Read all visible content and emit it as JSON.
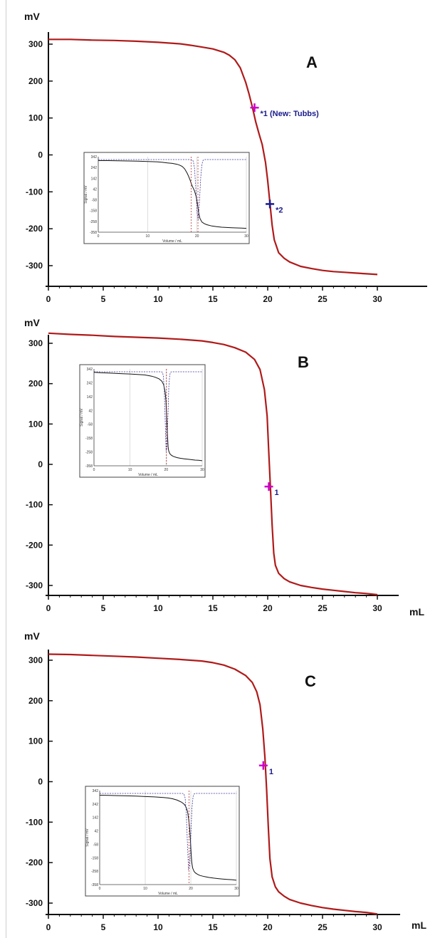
{
  "colors": {
    "curve": "#b01a1a",
    "marker1": "#cc00cc",
    "marker2": "#1a1a8c",
    "axis": "#111111",
    "inset_curve": "#111111",
    "inset_deriv": "#3a3a9a",
    "inset_grid": "#c8c8c8"
  },
  "chart_data": [
    {
      "type": "line",
      "panel_label": "A",
      "ylabel": "mV",
      "xlabel": "",
      "xlim": [
        0,
        30
      ],
      "ylim": [
        -350,
        350
      ],
      "xticks": [
        0,
        5,
        10,
        15,
        20,
        25,
        30
      ],
      "yticks": [
        300,
        200,
        100,
        0,
        -100,
        -200,
        -300
      ],
      "ytick_labels": [
        "300",
        "200",
        "100",
        "0",
        "-100",
        "-200",
        "-300"
      ],
      "series": [
        {
          "x": [
            0,
            2,
            4,
            6,
            8,
            10,
            12,
            13,
            14,
            15,
            16,
            16.5,
            17,
            17.5,
            18,
            18.3,
            18.6,
            18.9,
            19.2,
            19.5,
            19.8,
            20.0,
            20.2,
            20.4,
            20.6,
            21,
            21.5,
            22,
            23,
            24,
            25,
            26,
            27,
            28,
            29,
            30
          ],
          "y": [
            313,
            313,
            311,
            310,
            308,
            305,
            301,
            297,
            292,
            287,
            278,
            270,
            258,
            236,
            196,
            165,
            130,
            90,
            58,
            28,
            -20,
            -70,
            -130,
            -190,
            -230,
            -265,
            -280,
            -290,
            -302,
            -308,
            -313,
            -316,
            -318,
            -320,
            -322,
            -324
          ]
        }
      ],
      "markers": [
        {
          "label": "*1 (New: Tubbs)",
          "x": 18.8,
          "y": 128
        },
        {
          "label": "*2",
          "x": 20.2,
          "y": -133
        }
      ],
      "inset": {
        "xlabel": "Volume / mL",
        "ylabel": "Signal / mV",
        "xticks": [
          0,
          10,
          20,
          30
        ],
        "yticks": [
          "342",
          "242",
          "142",
          "42",
          "-58",
          "-158",
          "-258",
          "-358"
        ]
      }
    },
    {
      "type": "line",
      "panel_label": "B",
      "ylabel": "mV",
      "xlabel": "mL",
      "xlim": [
        0,
        30
      ],
      "ylim": [
        -350,
        350
      ],
      "xticks": [
        0,
        5,
        10,
        15,
        20,
        25,
        30
      ],
      "yticks": [
        300,
        200,
        100,
        0,
        -100,
        -200,
        -300
      ],
      "ytick_labels": [
        "300",
        "200",
        "100",
        "0",
        "-100",
        "-200",
        "-300"
      ],
      "series": [
        {
          "x": [
            0,
            2,
            4,
            6,
            8,
            10,
            12,
            14,
            15,
            16,
            17,
            18,
            18.8,
            19.3,
            19.7,
            19.95,
            20.1,
            20.25,
            20.4,
            20.55,
            20.7,
            21,
            21.5,
            22,
            23,
            24,
            25,
            26,
            27,
            28,
            29,
            30
          ],
          "y": [
            325,
            322,
            320,
            317,
            315,
            313,
            310,
            306,
            302,
            297,
            289,
            278,
            260,
            235,
            185,
            120,
            30,
            -60,
            -150,
            -220,
            -250,
            -270,
            -283,
            -291,
            -300,
            -305,
            -309,
            -312,
            -315,
            -318,
            -320,
            -323
          ]
        }
      ],
      "markers": [
        {
          "label": "1",
          "x": 20.1,
          "y": -55
        }
      ],
      "inset": {
        "xlabel": "Volume / mL",
        "ylabel": "Signal / mV",
        "xticks": [
          0,
          10,
          20,
          30
        ],
        "yticks": [
          "342",
          "242",
          "142",
          "42",
          "-58",
          "-158",
          "-258",
          "-358"
        ]
      }
    },
    {
      "type": "line",
      "panel_label": "C",
      "ylabel": "mV",
      "xlabel": "mL",
      "xlim": [
        0,
        30
      ],
      "ylim": [
        -350,
        350
      ],
      "xticks": [
        0,
        5,
        10,
        15,
        20,
        25,
        30
      ],
      "yticks": [
        300,
        200,
        100,
        0,
        -100,
        -200,
        -300
      ],
      "ytick_labels": [
        "300",
        "200",
        "100",
        "0",
        "-100",
        "-200",
        "-300"
      ],
      "series": [
        {
          "x": [
            0,
            2,
            4,
            6,
            8,
            10,
            12,
            14,
            15,
            16,
            17,
            18,
            18.6,
            19.0,
            19.3,
            19.55,
            19.75,
            19.9,
            20.05,
            20.2,
            20.4,
            20.7,
            21,
            21.5,
            22,
            23,
            24,
            25,
            26,
            27,
            28,
            29,
            30
          ],
          "y": [
            315,
            314,
            312,
            310,
            308,
            305,
            302,
            298,
            294,
            288,
            278,
            262,
            245,
            222,
            190,
            130,
            60,
            -20,
            -110,
            -190,
            -235,
            -260,
            -272,
            -283,
            -291,
            -300,
            -306,
            -311,
            -315,
            -318,
            -321,
            -323,
            -327
          ]
        }
      ],
      "markers": [
        {
          "label": "1",
          "x": 19.6,
          "y": 40
        }
      ],
      "inset": {
        "xlabel": "Volume / mL",
        "ylabel": "Signal / mV",
        "xticks": [
          0,
          10,
          20,
          30
        ],
        "yticks": [
          "342",
          "242",
          "142",
          "42",
          "-58",
          "-158",
          "-258",
          "-358"
        ]
      }
    }
  ]
}
